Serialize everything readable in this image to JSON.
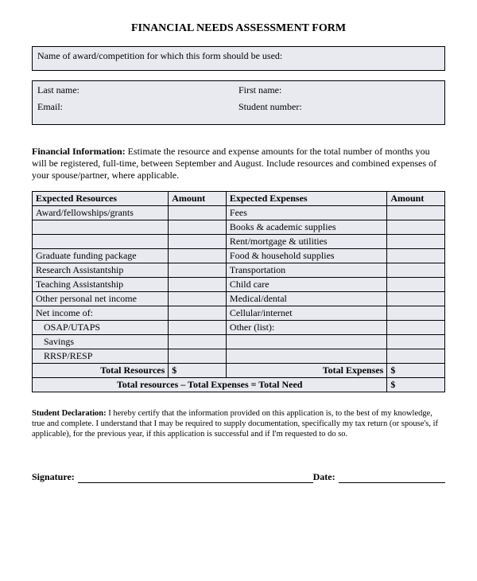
{
  "title": "FINANCIAL NEEDS ASSESSMENT FORM",
  "box1": {
    "award_label": "Name of award/competition for which this form should be used:"
  },
  "box2": {
    "last_name_label": "Last name:",
    "first_name_label": "First name:",
    "email_label": "Email:",
    "student_number_label": "Student number:"
  },
  "financial_intro": {
    "heading": "Financial Information:",
    "text": " Estimate the resource and expense amounts for the total number of months you will be registered, full-time, between September and August.  Include resources and combined expenses of your spouse/partner, where applicable."
  },
  "table": {
    "headers": {
      "resources": "Expected Resources",
      "amount1": "Amount",
      "expenses": "Expected Expenses",
      "amount2": "Amount"
    },
    "rows": [
      {
        "res": "Award/fellowships/grants",
        "exp": "Fees",
        "indent": false
      },
      {
        "res": "",
        "exp": "Books & academic supplies",
        "indent": false
      },
      {
        "res": "",
        "exp": "Rent/mortgage & utilities",
        "indent": false
      },
      {
        "res": "Graduate funding package",
        "exp": "Food & household supplies",
        "indent": false
      },
      {
        "res": "Research Assistantship",
        "exp": "Transportation",
        "indent": false
      },
      {
        "res": "Teaching Assistantship",
        "exp": "Child care",
        "indent": false
      },
      {
        "res": "Other personal net income",
        "exp": "Medical/dental",
        "indent": false
      },
      {
        "res": "Net income of:",
        "exp": "Cellular/internet",
        "indent": false
      },
      {
        "res": "OSAP/UTAPS",
        "exp": "Other (list):",
        "indent": true
      },
      {
        "res": "Savings",
        "exp": "",
        "indent": true
      },
      {
        "res": "RRSP/RESP",
        "exp": "",
        "indent": true
      }
    ],
    "totals": {
      "total_resources_label": "Total Resources",
      "total_expenses_label": "Total Expenses",
      "dollar": "$",
      "grand_label": "Total resources – Total Expenses = Total Need"
    }
  },
  "declaration": {
    "heading": "Student Declaration:",
    "text": " I hereby certify that the information provided on this application is, to the best of my knowledge, true and complete.  I understand that I may be required to supply documentation, specifically my tax return (or spouse's, if applicable), for the previous year, if this application is successful and if I'm requested to do so."
  },
  "signature": {
    "sig_label": "Signature:",
    "date_label": "Date:"
  },
  "colors": {
    "page_bg": "#ffffff",
    "field_bg": "#e8eaf0",
    "border": "#000000",
    "text": "#000000"
  }
}
